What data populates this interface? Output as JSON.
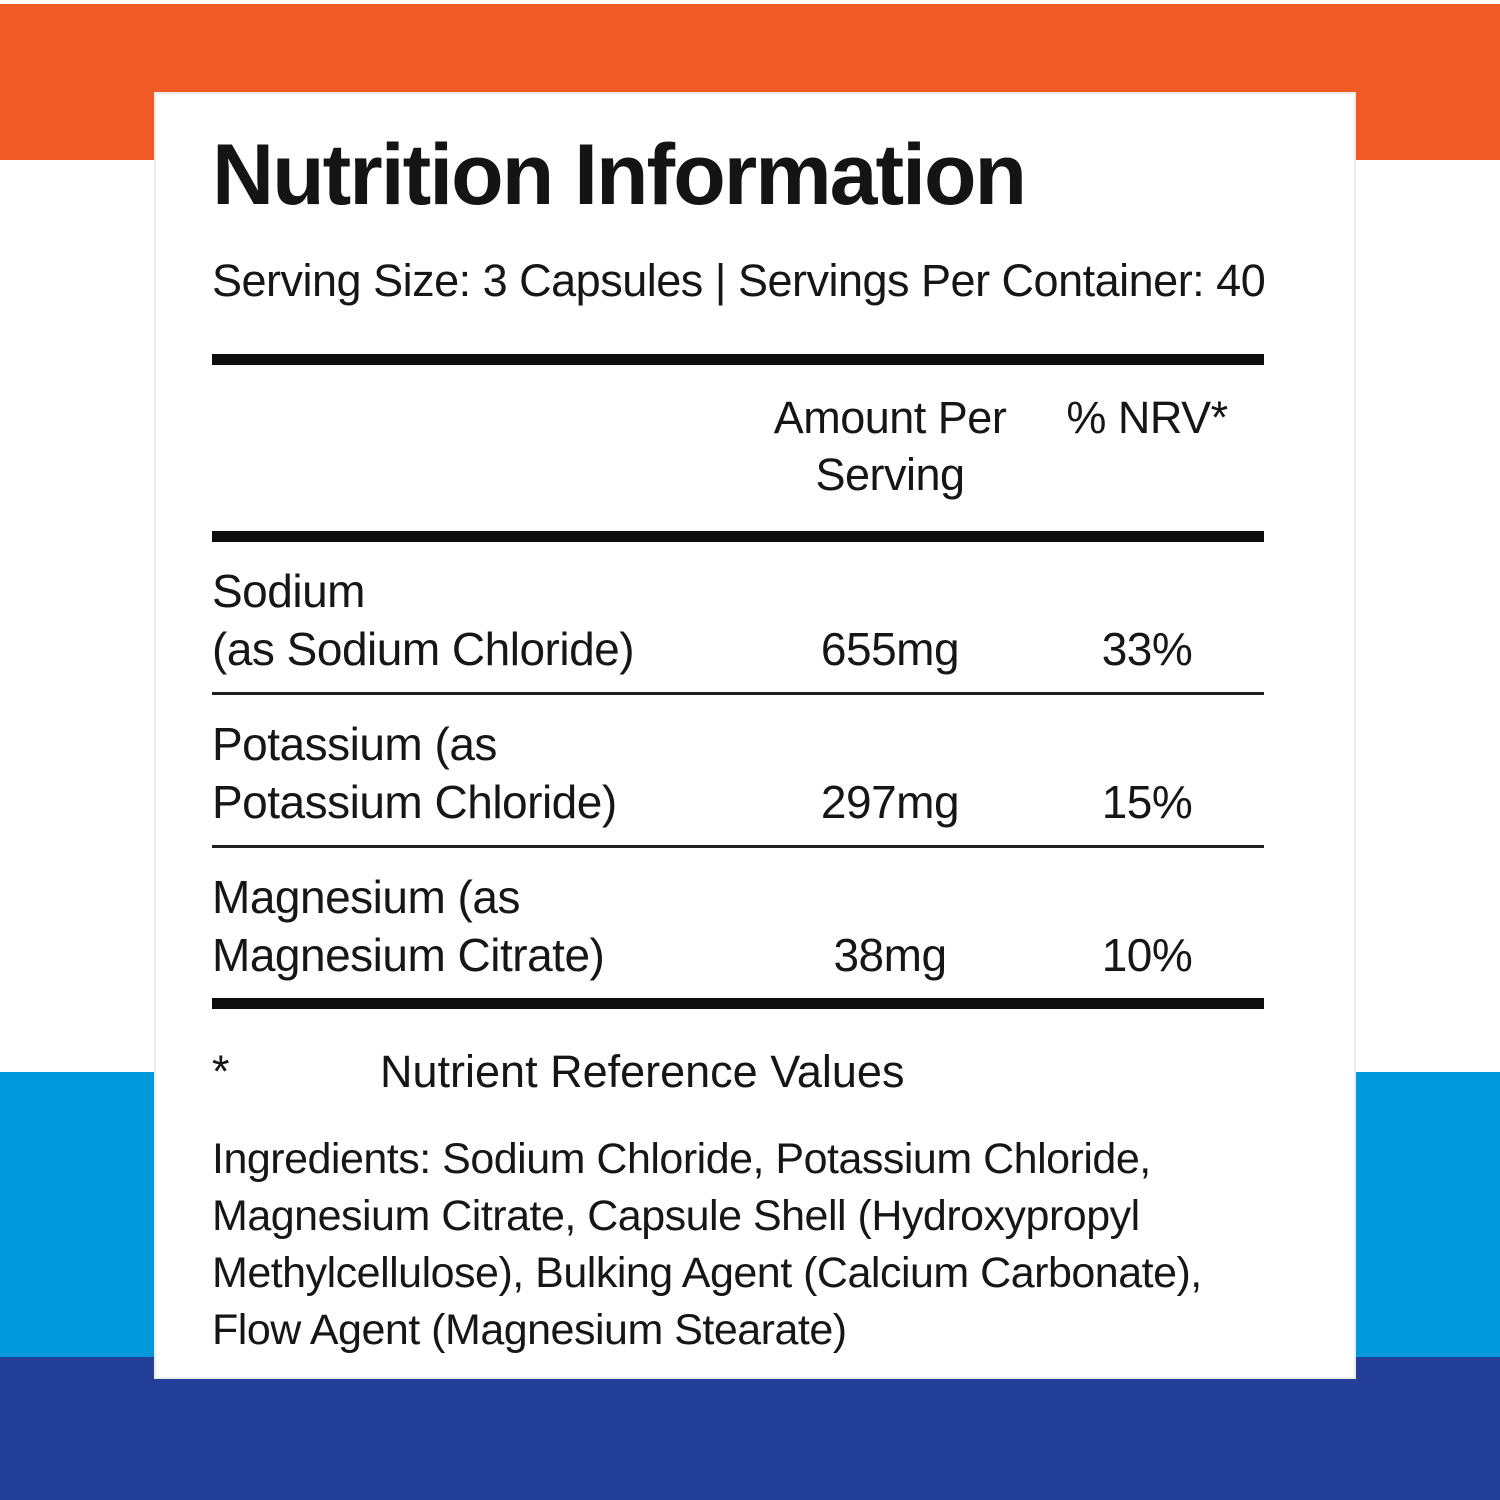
{
  "colors": {
    "orange_band": "#F05A24",
    "light_blue_band": "#0098DC",
    "dark_blue_band": "#243F97",
    "text": "#161616"
  },
  "header": {
    "title": "Nutrition Information",
    "serving_line": "Serving Size: 3 Capsules | Servings Per Container: 40"
  },
  "table": {
    "amount_header_line1": "Amount Per",
    "amount_header_line2": "Serving",
    "nrv_header": "% NRV*",
    "rows": [
      {
        "name_line1": "Sodium",
        "name_line2": "(as Sodium Chloride)",
        "amount": "655mg",
        "nrv": "33%"
      },
      {
        "name_line1": "Potassium (as",
        "name_line2": "Potassium Chloride)",
        "amount": "297mg",
        "nrv": "15%"
      },
      {
        "name_line1": "Magnesium (as",
        "name_line2": "Magnesium Citrate)",
        "amount": "38mg",
        "nrv": "10%"
      }
    ]
  },
  "footnote": {
    "symbol": "*",
    "text": "Nutrient Reference Values"
  },
  "ingredients": {
    "lines": [
      "Ingredients: Sodium Chloride, Potassium Chloride,",
      "Magnesium Citrate, Capsule Shell (Hydroxypropyl",
      "Methylcellulose), Bulking Agent (Calcium Carbonate),",
      "Flow Agent (Magnesium Stearate)"
    ]
  }
}
